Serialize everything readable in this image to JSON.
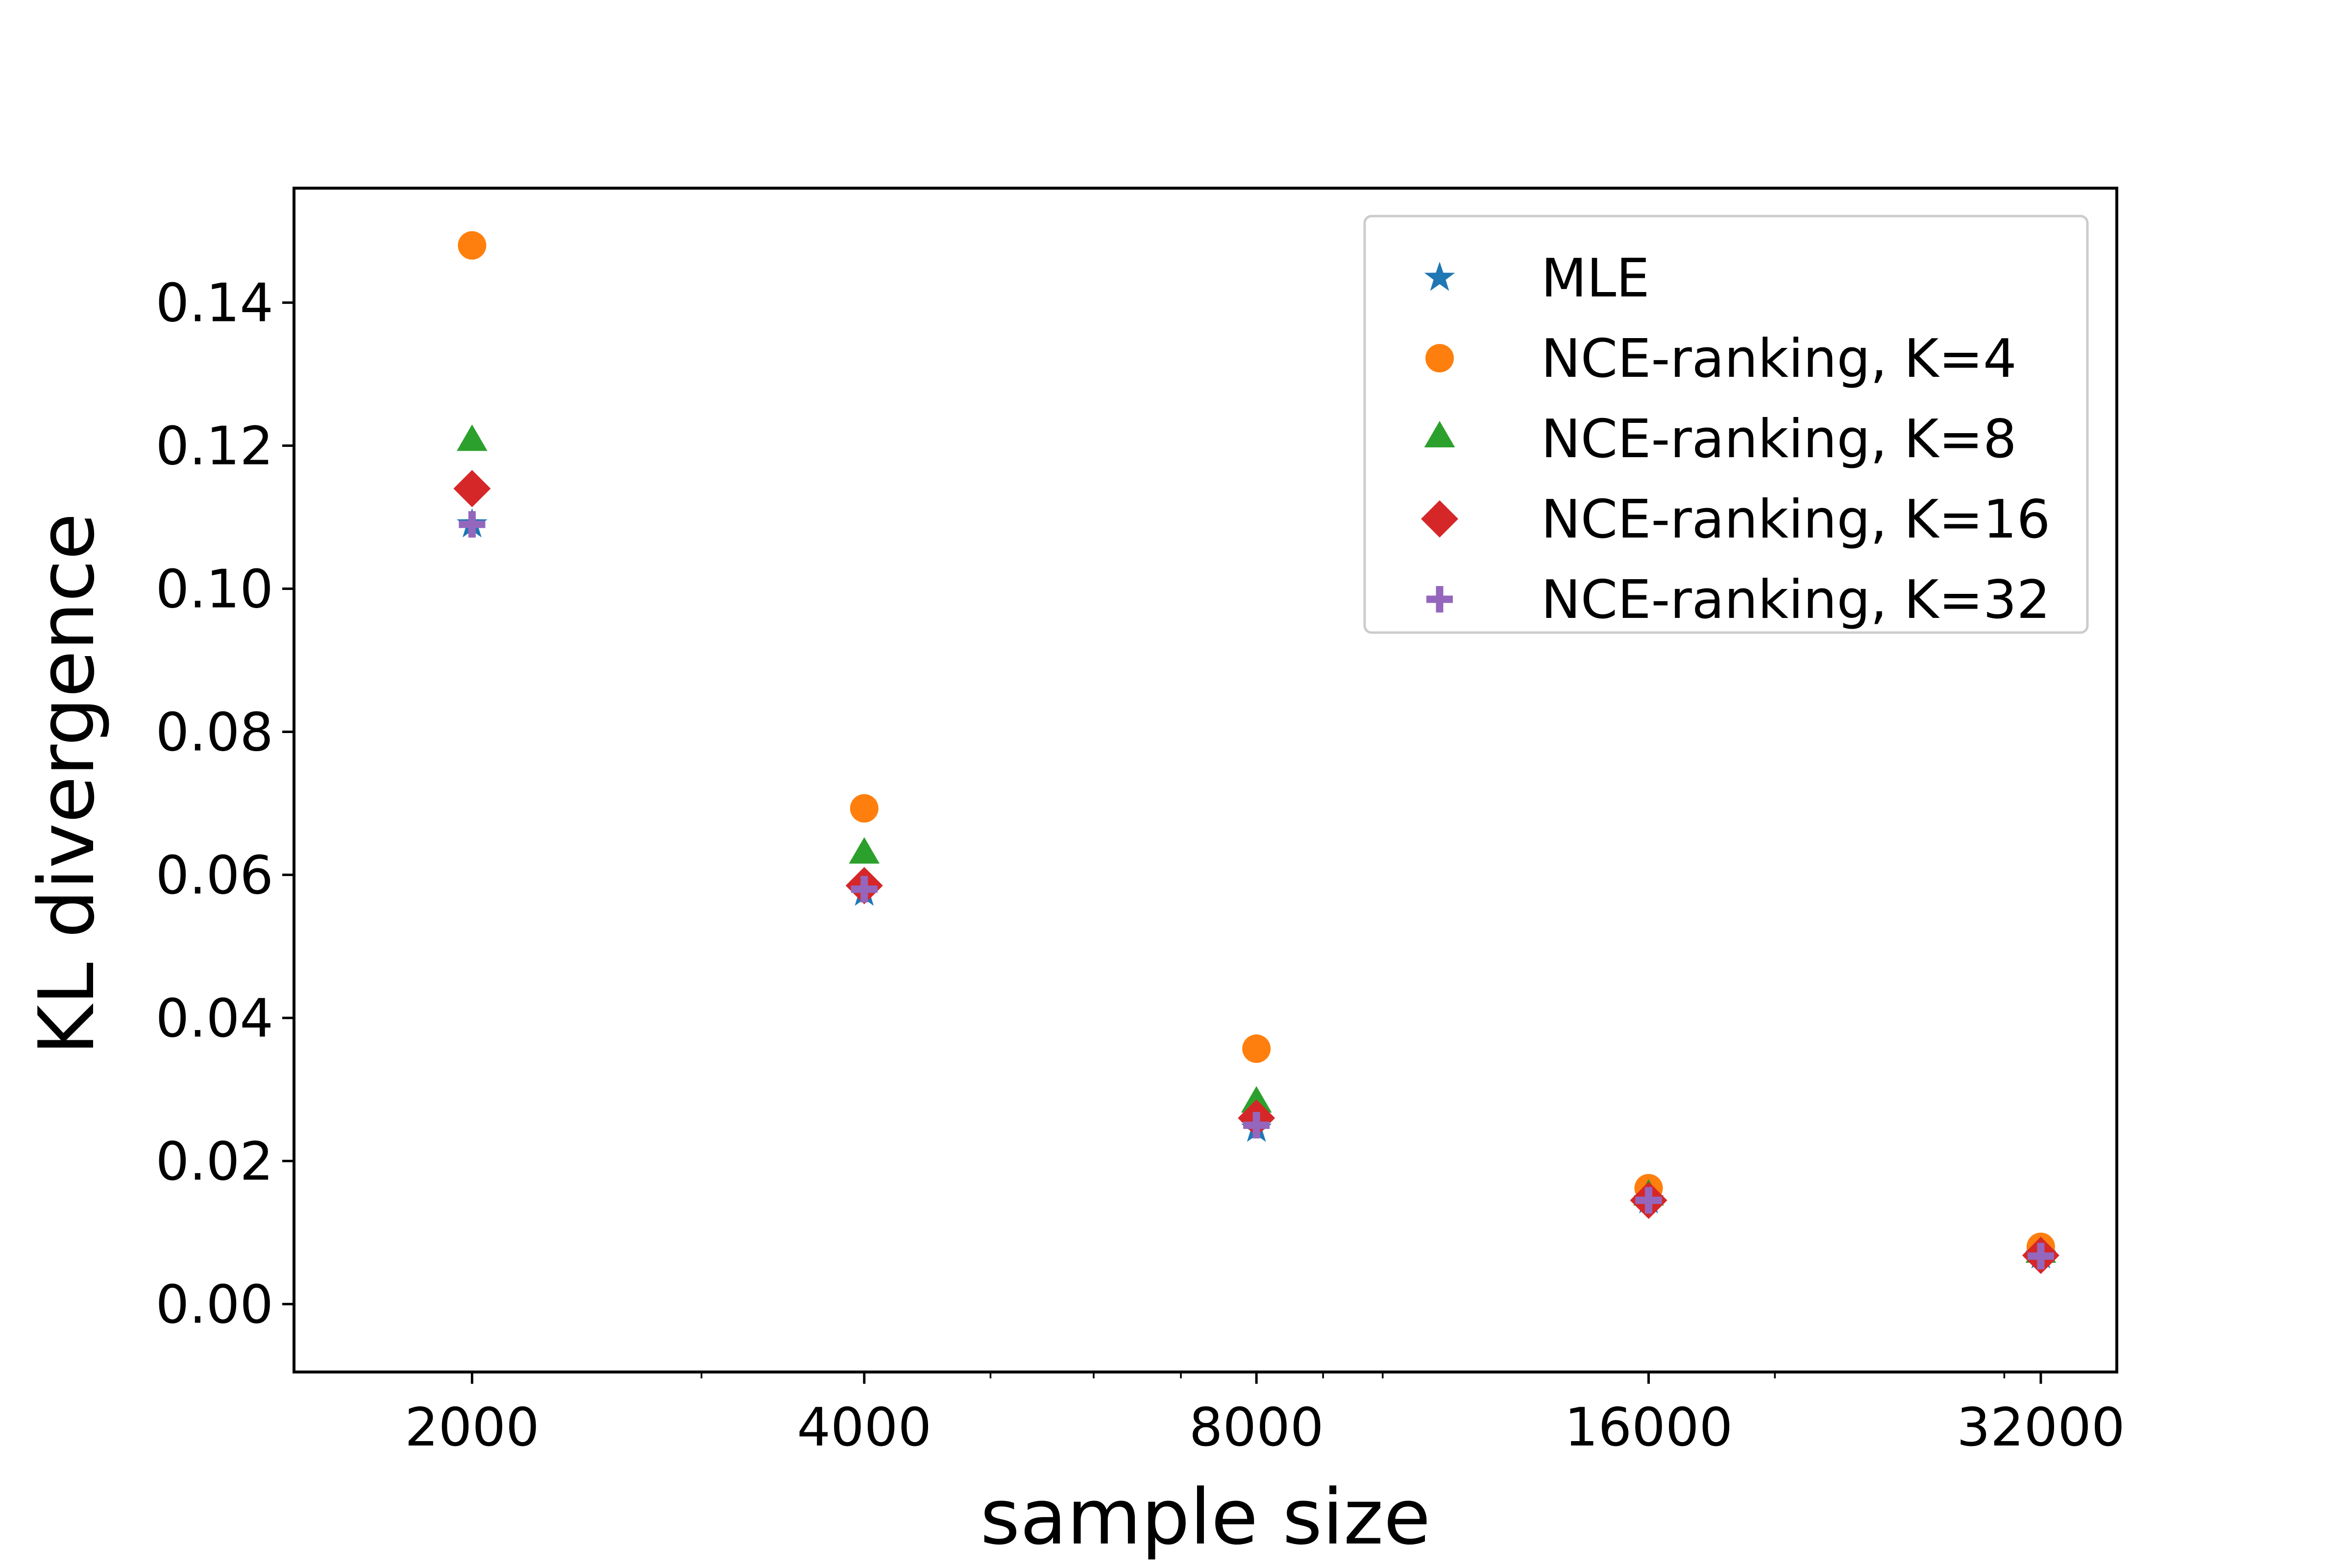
{
  "chart_data": {
    "type": "scatter",
    "title": "",
    "xlabel": "sample size",
    "ylabel": "KL divergence",
    "xscale": "log2",
    "x": [
      2000,
      4000,
      8000,
      16000,
      32000
    ],
    "x_tick_labels": [
      "2000",
      "4000",
      "8000",
      "16000",
      "32000"
    ],
    "y_ticks": [
      0.0,
      0.02,
      0.04,
      0.06,
      0.08,
      0.1,
      0.12,
      0.14
    ],
    "y_tick_labels": [
      "0.00",
      "0.02",
      "0.04",
      "0.06",
      "0.08",
      "0.10",
      "0.12",
      "0.14"
    ],
    "ylim": [
      -0.0095,
      0.156
    ],
    "xlim": [
      1460,
      36600
    ],
    "grid": false,
    "legend_position": "top-right",
    "series": [
      {
        "name": "MLE",
        "marker": "star",
        "color": "#1f77b4",
        "values": [
          0.109,
          0.0575,
          0.0245,
          0.0145,
          0.0068
        ]
      },
      {
        "name": "NCE-ranking, K=4",
        "marker": "circle",
        "color": "#ff7f0e",
        "values": [
          0.148,
          0.0693,
          0.0357,
          0.0162,
          0.008
        ]
      },
      {
        "name": "NCE-ranking, K=8",
        "marker": "triangle",
        "color": "#2ca02c",
        "values": [
          0.1205,
          0.0628,
          0.028,
          0.015,
          0.007
        ]
      },
      {
        "name": "NCE-ranking, K=16",
        "marker": "diamond",
        "color": "#d62728",
        "values": [
          0.114,
          0.0585,
          0.026,
          0.0145,
          0.0068
        ]
      },
      {
        "name": "NCE-ranking, K=32",
        "marker": "plus",
        "color": "#9467bd",
        "values": [
          0.109,
          0.058,
          0.025,
          0.0145,
          0.0067
        ]
      }
    ]
  }
}
